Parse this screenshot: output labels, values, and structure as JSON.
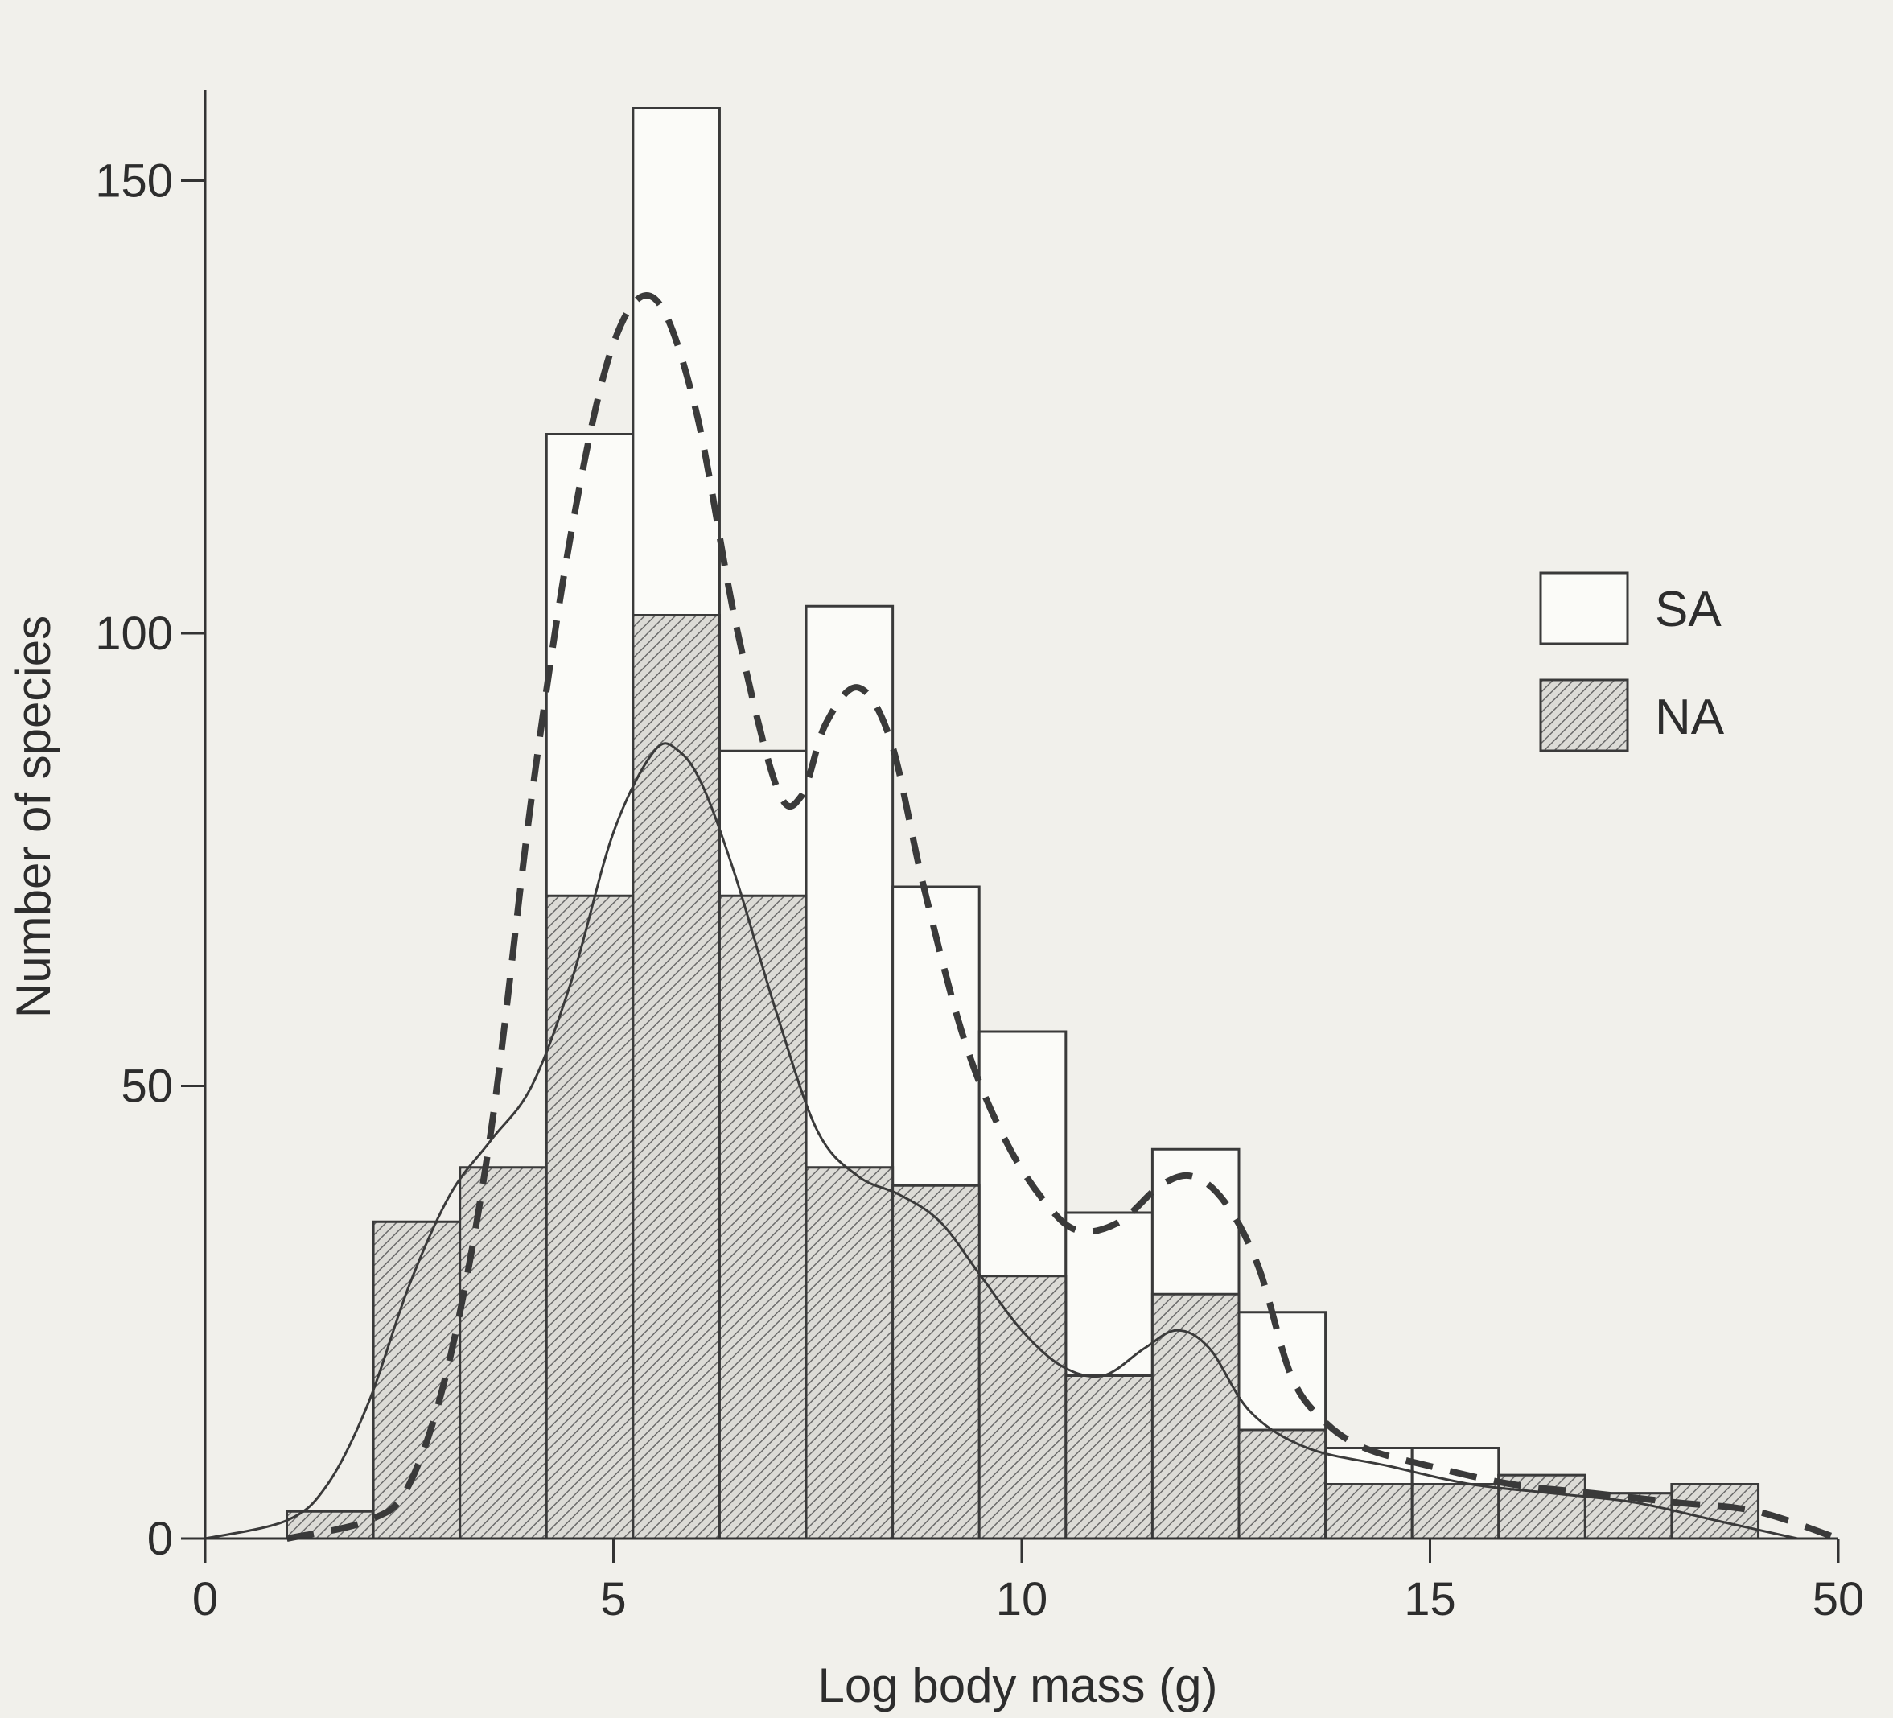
{
  "chart_data": {
    "type": "bar",
    "xlabel": "Log body mass (g)",
    "ylabel": "Number of species",
    "ylim": [
      0,
      160
    ],
    "y_ticks": [
      0,
      50,
      100,
      150
    ],
    "x_ticks": [
      "0",
      "5",
      "10",
      "15",
      "50"
    ],
    "x_tick_positions": [
      0,
      5,
      10,
      15,
      20
    ],
    "xlim": [
      0,
      20
    ],
    "bin_width": 1.06,
    "bins_left": [
      1.0,
      2.06,
      3.12,
      4.18,
      5.24,
      6.3,
      7.36,
      8.42,
      9.48,
      10.54,
      11.6,
      12.66,
      13.72,
      14.78,
      15.84,
      16.9,
      17.96
    ],
    "series": [
      {
        "name": "SA",
        "style": "open",
        "values": [
          0,
          0,
          0,
          122,
          158,
          87,
          103,
          72,
          56,
          36,
          43,
          25,
          10,
          10,
          7,
          5,
          6
        ]
      },
      {
        "name": "NA",
        "style": "hatched",
        "values": [
          3,
          35,
          41,
          71,
          102,
          71,
          41,
          39,
          29,
          18,
          27,
          12,
          6,
          6,
          7,
          5,
          6
        ]
      }
    ],
    "density_curves": [
      {
        "series": "SA",
        "style": "dashed",
        "x": [
          1.0,
          2.0,
          2.5,
          3.0,
          3.5,
          4.0,
          4.5,
          5.0,
          5.5,
          6.0,
          6.5,
          7.0,
          7.3,
          7.6,
          8.0,
          8.4,
          8.8,
          9.3,
          9.8,
          10.3,
          10.7,
          11.2,
          11.7,
          12.1,
          12.5,
          12.9,
          13.3,
          13.7,
          14.2,
          15.0,
          16.0,
          17.0,
          18.0,
          19.0,
          20.0
        ],
        "y": [
          0,
          2,
          6,
          20,
          45,
          82,
          112,
          132,
          137,
          125,
          101,
          83,
          82,
          90,
          94,
          88,
          72,
          55,
          44,
          37,
          34,
          35,
          39,
          40,
          37,
          30,
          18,
          13,
          10,
          8,
          6,
          5,
          4,
          3,
          0
        ]
      },
      {
        "series": "NA",
        "style": "solid",
        "x": [
          0,
          1.0,
          1.5,
          2.0,
          2.5,
          3.0,
          3.5,
          4.0,
          4.5,
          5.0,
          5.5,
          5.8,
          6.1,
          6.5,
          7.0,
          7.5,
          8.0,
          8.5,
          9.0,
          9.5,
          10.0,
          10.5,
          11.0,
          11.5,
          11.9,
          12.3,
          12.8,
          13.5,
          14.5,
          15.5,
          16.5,
          17.5,
          18.5,
          19.5
        ],
        "y": [
          0,
          2,
          6,
          15,
          28,
          38,
          44,
          50,
          62,
          78,
          87,
          87,
          83,
          73,
          58,
          45,
          40,
          38,
          35,
          29,
          23,
          19,
          18,
          21,
          23,
          21,
          14,
          10,
          8,
          6,
          5,
          4,
          2,
          0
        ]
      }
    ],
    "legend": {
      "placement": "right",
      "items": [
        {
          "label": "SA",
          "style": "open"
        },
        {
          "label": "NA",
          "style": "hatched"
        }
      ]
    },
    "grid": false
  }
}
